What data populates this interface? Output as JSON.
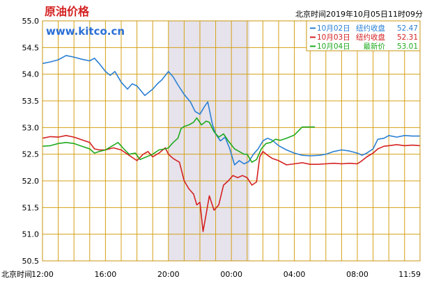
{
  "chart_data": {
    "type": "line",
    "title": "原油价格",
    "watermark": "www.kitco.cn",
    "timestamp": "北京时间2019年10月05日11时09分",
    "xlabel": "北京时间",
    "x_ticks": [
      "12:00",
      "16:00",
      "20:00",
      "00:00",
      "04:00",
      "08:00",
      "11:59"
    ],
    "y_ticks": [
      "55.0",
      "54.5",
      "54.0",
      "53.5",
      "53.0",
      "52.5",
      "52.0",
      "51.5",
      "51.0",
      "50.5"
    ],
    "ylim": [
      50.5,
      55.0
    ],
    "grid": true,
    "grid_color": "#d4a017",
    "shaded_range_hours": [
      20.0,
      1.15
    ],
    "shaded_color": "#e6e3ec",
    "legend_position": "top-right",
    "series": [
      {
        "name": "10月02日",
        "market_label": "纽约收盘",
        "last_value": "52.47",
        "color": "#2a7fd4",
        "points": [
          [
            12.0,
            54.2
          ],
          [
            12.5,
            54.23
          ],
          [
            13.0,
            54.27
          ],
          [
            13.5,
            54.35
          ],
          [
            14.0,
            54.32
          ],
          [
            14.5,
            54.28
          ],
          [
            15.0,
            54.25
          ],
          [
            15.3,
            54.3
          ],
          [
            15.6,
            54.2
          ],
          [
            16.0,
            54.05
          ],
          [
            16.3,
            53.98
          ],
          [
            16.6,
            54.05
          ],
          [
            17.0,
            53.85
          ],
          [
            17.4,
            53.72
          ],
          [
            17.7,
            53.82
          ],
          [
            18.0,
            53.78
          ],
          [
            18.5,
            53.6
          ],
          [
            19.0,
            53.72
          ],
          [
            19.3,
            53.82
          ],
          [
            19.6,
            53.9
          ],
          [
            20.0,
            54.05
          ],
          [
            20.3,
            53.95
          ],
          [
            20.6,
            53.8
          ],
          [
            21.0,
            53.62
          ],
          [
            21.4,
            53.48
          ],
          [
            21.7,
            53.3
          ],
          [
            22.0,
            53.25
          ],
          [
            22.3,
            53.4
          ],
          [
            22.5,
            53.48
          ],
          [
            22.8,
            53.05
          ],
          [
            23.0,
            52.88
          ],
          [
            23.3,
            52.75
          ],
          [
            23.6,
            52.82
          ],
          [
            23.9,
            52.6
          ],
          [
            0.2,
            52.3
          ],
          [
            0.5,
            52.38
          ],
          [
            0.8,
            52.32
          ],
          [
            1.1,
            52.36
          ],
          [
            1.4,
            52.5
          ],
          [
            1.7,
            52.6
          ],
          [
            2.0,
            52.75
          ],
          [
            2.3,
            52.8
          ],
          [
            2.6,
            52.76
          ],
          [
            3.0,
            52.66
          ],
          [
            3.5,
            52.58
          ],
          [
            4.0,
            52.52
          ],
          [
            4.5,
            52.48
          ],
          [
            5.0,
            52.47
          ],
          [
            5.6,
            52.48
          ],
          [
            6.0,
            52.5
          ],
          [
            6.5,
            52.55
          ],
          [
            7.0,
            52.58
          ],
          [
            7.5,
            52.56
          ],
          [
            8.0,
            52.52
          ],
          [
            8.3,
            52.48
          ],
          [
            8.6,
            52.52
          ],
          [
            9.0,
            52.6
          ],
          [
            9.3,
            52.78
          ],
          [
            9.7,
            52.8
          ],
          [
            10.0,
            52.85
          ],
          [
            10.5,
            52.82
          ],
          [
            11.0,
            52.85
          ],
          [
            11.5,
            52.84
          ],
          [
            11.98,
            52.84
          ]
        ]
      },
      {
        "name": "10月03日",
        "market_label": "纽约收盘",
        "last_value": "52.31",
        "color": "#d42020",
        "points": [
          [
            12.0,
            52.8
          ],
          [
            12.5,
            52.83
          ],
          [
            13.0,
            52.82
          ],
          [
            13.5,
            52.85
          ],
          [
            14.0,
            52.82
          ],
          [
            14.5,
            52.77
          ],
          [
            15.0,
            52.72
          ],
          [
            15.3,
            52.6
          ],
          [
            15.6,
            52.58
          ],
          [
            16.0,
            52.58
          ],
          [
            16.5,
            52.62
          ],
          [
            17.0,
            52.58
          ],
          [
            17.5,
            52.48
          ],
          [
            18.0,
            52.38
          ],
          [
            18.4,
            52.5
          ],
          [
            18.7,
            52.55
          ],
          [
            19.0,
            52.45
          ],
          [
            19.4,
            52.52
          ],
          [
            19.8,
            52.62
          ],
          [
            20.0,
            52.5
          ],
          [
            20.3,
            52.42
          ],
          [
            20.7,
            52.35
          ],
          [
            21.0,
            52.0
          ],
          [
            21.3,
            51.85
          ],
          [
            21.6,
            51.75
          ],
          [
            21.8,
            51.55
          ],
          [
            22.0,
            51.6
          ],
          [
            22.2,
            51.05
          ],
          [
            22.4,
            51.38
          ],
          [
            22.6,
            51.72
          ],
          [
            22.9,
            51.45
          ],
          [
            23.2,
            51.55
          ],
          [
            23.5,
            51.92
          ],
          [
            23.8,
            52.0
          ],
          [
            0.1,
            52.1
          ],
          [
            0.4,
            52.06
          ],
          [
            0.7,
            52.1
          ],
          [
            1.0,
            52.06
          ],
          [
            1.3,
            51.92
          ],
          [
            1.6,
            51.98
          ],
          [
            1.8,
            52.45
          ],
          [
            2.0,
            52.55
          ],
          [
            2.3,
            52.48
          ],
          [
            2.6,
            52.42
          ],
          [
            3.0,
            52.38
          ],
          [
            3.5,
            52.3
          ],
          [
            4.0,
            52.32
          ],
          [
            4.5,
            52.34
          ],
          [
            5.0,
            52.31
          ],
          [
            5.5,
            52.31
          ],
          [
            6.0,
            52.32
          ],
          [
            6.5,
            52.33
          ],
          [
            7.0,
            52.32
          ],
          [
            7.5,
            52.33
          ],
          [
            8.0,
            52.32
          ],
          [
            8.3,
            52.38
          ],
          [
            8.6,
            52.45
          ],
          [
            9.0,
            52.52
          ],
          [
            9.3,
            52.6
          ],
          [
            9.7,
            52.65
          ],
          [
            10.0,
            52.66
          ],
          [
            10.5,
            52.68
          ],
          [
            11.0,
            52.66
          ],
          [
            11.5,
            52.67
          ],
          [
            11.98,
            52.66
          ]
        ]
      },
      {
        "name": "10月04日",
        "market_label": "最新价",
        "last_value": "53.01",
        "color": "#1faa1f",
        "points": [
          [
            12.0,
            52.65
          ],
          [
            12.5,
            52.66
          ],
          [
            13.0,
            52.7
          ],
          [
            13.5,
            52.72
          ],
          [
            14.0,
            52.7
          ],
          [
            14.5,
            52.65
          ],
          [
            15.0,
            52.6
          ],
          [
            15.3,
            52.52
          ],
          [
            15.6,
            52.55
          ],
          [
            16.0,
            52.58
          ],
          [
            16.4,
            52.65
          ],
          [
            16.8,
            52.72
          ],
          [
            17.1,
            52.62
          ],
          [
            17.5,
            52.5
          ],
          [
            17.9,
            52.52
          ],
          [
            18.2,
            52.4
          ],
          [
            18.6,
            52.45
          ],
          [
            19.0,
            52.5
          ],
          [
            19.4,
            52.58
          ],
          [
            19.8,
            52.6
          ],
          [
            20.0,
            52.62
          ],
          [
            20.3,
            52.72
          ],
          [
            20.6,
            52.8
          ],
          [
            20.8,
            52.98
          ],
          [
            21.0,
            53.02
          ],
          [
            21.3,
            53.05
          ],
          [
            21.6,
            53.1
          ],
          [
            21.8,
            53.18
          ],
          [
            22.1,
            53.05
          ],
          [
            22.4,
            53.12
          ],
          [
            22.6,
            53.1
          ],
          [
            22.9,
            52.92
          ],
          [
            23.2,
            52.82
          ],
          [
            23.5,
            52.88
          ],
          [
            23.8,
            52.75
          ],
          [
            0.2,
            52.6
          ],
          [
            0.5,
            52.55
          ],
          [
            0.8,
            52.5
          ],
          [
            1.0,
            52.5
          ],
          [
            1.3,
            52.35
          ],
          [
            1.6,
            52.4
          ],
          [
            1.9,
            52.6
          ],
          [
            2.2,
            52.7
          ],
          [
            2.5,
            52.72
          ],
          [
            2.8,
            52.78
          ],
          [
            3.1,
            52.76
          ],
          [
            3.5,
            52.8
          ],
          [
            4.0,
            52.86
          ],
          [
            4.5,
            53.01
          ],
          [
            5.0,
            53.01
          ],
          [
            5.3,
            53.01
          ]
        ]
      }
    ]
  }
}
